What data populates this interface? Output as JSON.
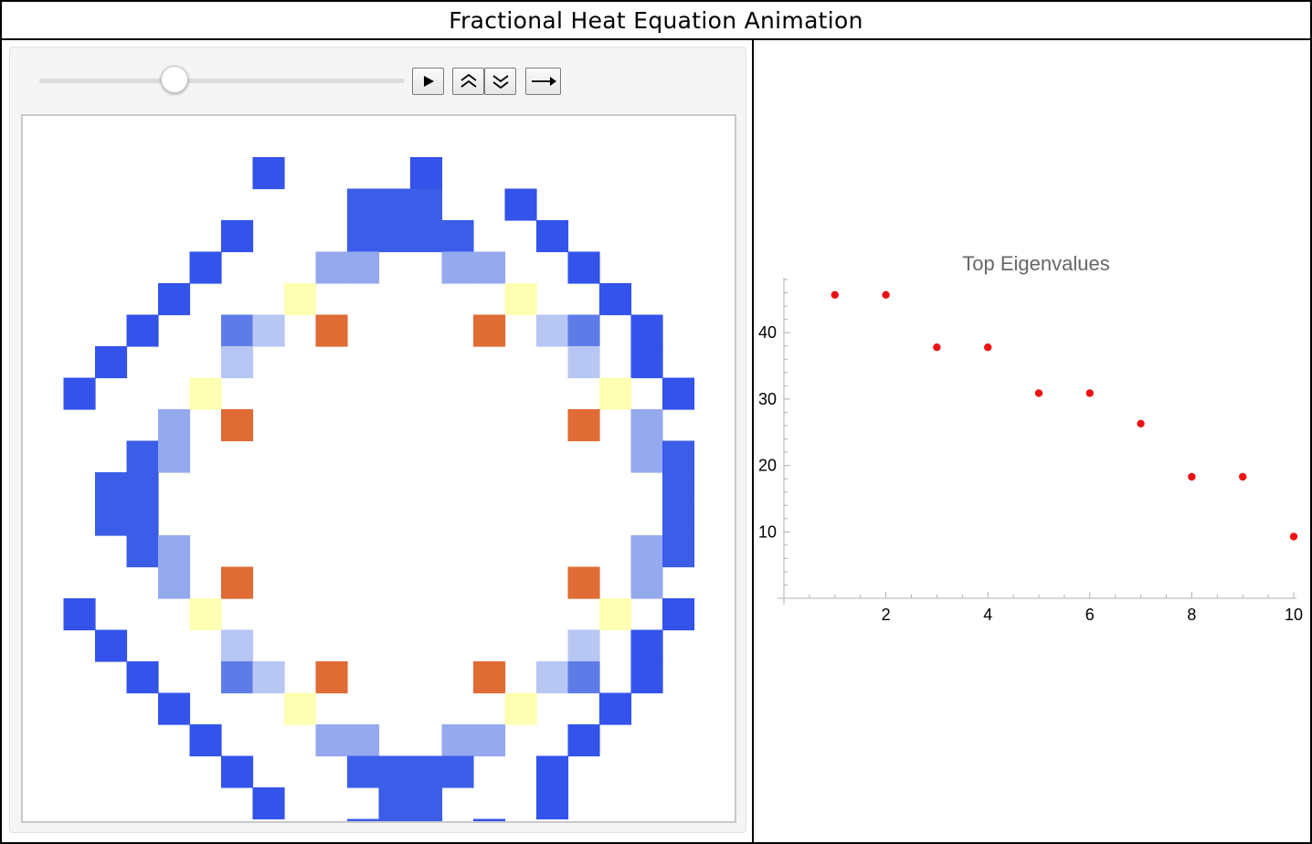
{
  "window": {
    "title": "Fractional Heat Equation Animation"
  },
  "controls": {
    "slider": {
      "value": 0.37
    },
    "play_icon": "play-icon",
    "faster_icon": "double-chevron-up-icon",
    "slower_icon": "double-chevron-down-icon",
    "direction_icon": "right-arrow-icon"
  },
  "heatmap": {
    "colors": {
      "A": "#3353ea",
      "B": "#3c5de8",
      "M": "#5e7ce8",
      "L": "#95a9ef",
      "P": "#b8c6f4",
      "Y": "#feffb2",
      "O": "#df6b35"
    },
    "grid": [
      "....................",
      "......A....A........",
      ".........BBB..A.....",
      ".....A...BBBB..A....",
      "....A...LL..LL..A...",
      "...A...Y......Y..A..",
      "..A..MP.O....O.PM.A.",
      ".A...P..........P.A.",
      "A...Y............Y.A",
      "...L.O..........O.L.",
      "..BL..............LB",
      ".BB................B",
      ".BB................B",
      "..BL..............LB",
      "...L.O..........O.L.",
      "A...Y............Y.A",
      ".A...P..........P.A.",
      "..A..MP.O....O.PM.A.",
      "...A...Y......Y..A..",
      "....A...LL..LL..A...",
      ".....A...BBBB..A....",
      "......A...BB...A....",
      ".........BBB.A......",
      "...................."
    ]
  },
  "chart_data": {
    "type": "scatter",
    "title": "Top Eigenvalues",
    "x": [
      1,
      2,
      3,
      4,
      5,
      6,
      7,
      8,
      9,
      10
    ],
    "y": [
      45.7,
      45.7,
      37.8,
      37.8,
      30.9,
      30.9,
      26.3,
      18.3,
      18.3,
      9.3
    ],
    "xlim": [
      0,
      10
    ],
    "ylim": [
      0,
      48
    ],
    "x_ticks": [
      2,
      4,
      6,
      8,
      10
    ],
    "y_ticks": [
      10,
      20,
      30,
      40
    ],
    "x_tick_labels": [
      "2",
      "4",
      "6",
      "8",
      "10"
    ],
    "y_tick_labels": [
      "10",
      "20",
      "30",
      "40"
    ],
    "point_color": "#ee1111",
    "grid": false,
    "xlabel": "",
    "ylabel": ""
  }
}
